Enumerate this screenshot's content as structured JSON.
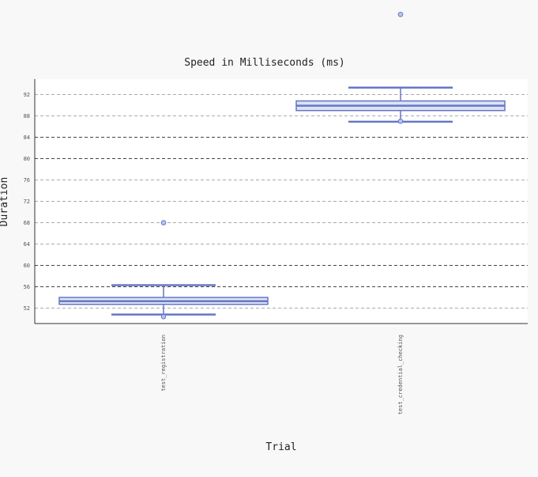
{
  "chart_data": {
    "type": "box",
    "title": "Speed in Milliseconds (ms)",
    "xlabel": "Trial",
    "ylabel": "Duration",
    "ylim": [
      49.5,
      94
    ],
    "yticks": [
      52,
      56,
      60,
      64,
      68,
      72,
      76,
      80,
      84,
      88,
      92
    ],
    "dark_gridlines": [
      56,
      60,
      80,
      84
    ],
    "grid": true,
    "categories": [
      "test_registration",
      "test_credential_checking"
    ],
    "series": [
      {
        "whisker_low": 50.8,
        "q1": 52.7,
        "median": 53.3,
        "q3": 54.0,
        "whisker_high": 56.3,
        "outliers": [
          50.4,
          68.0
        ]
      },
      {
        "whisker_low": 86.9,
        "q1": 89.0,
        "median": 89.9,
        "q3": 90.8,
        "whisker_high": 93.3,
        "outliers": [
          87.0,
          107.0
        ]
      }
    ],
    "colors": {
      "box_stroke": "#6677c4",
      "box_fill": "#dde3f6",
      "outlier_fill": "#b8c6f0",
      "grid": "#aaaaaa",
      "grid_dark": "#444444",
      "axis": "#333333"
    }
  }
}
